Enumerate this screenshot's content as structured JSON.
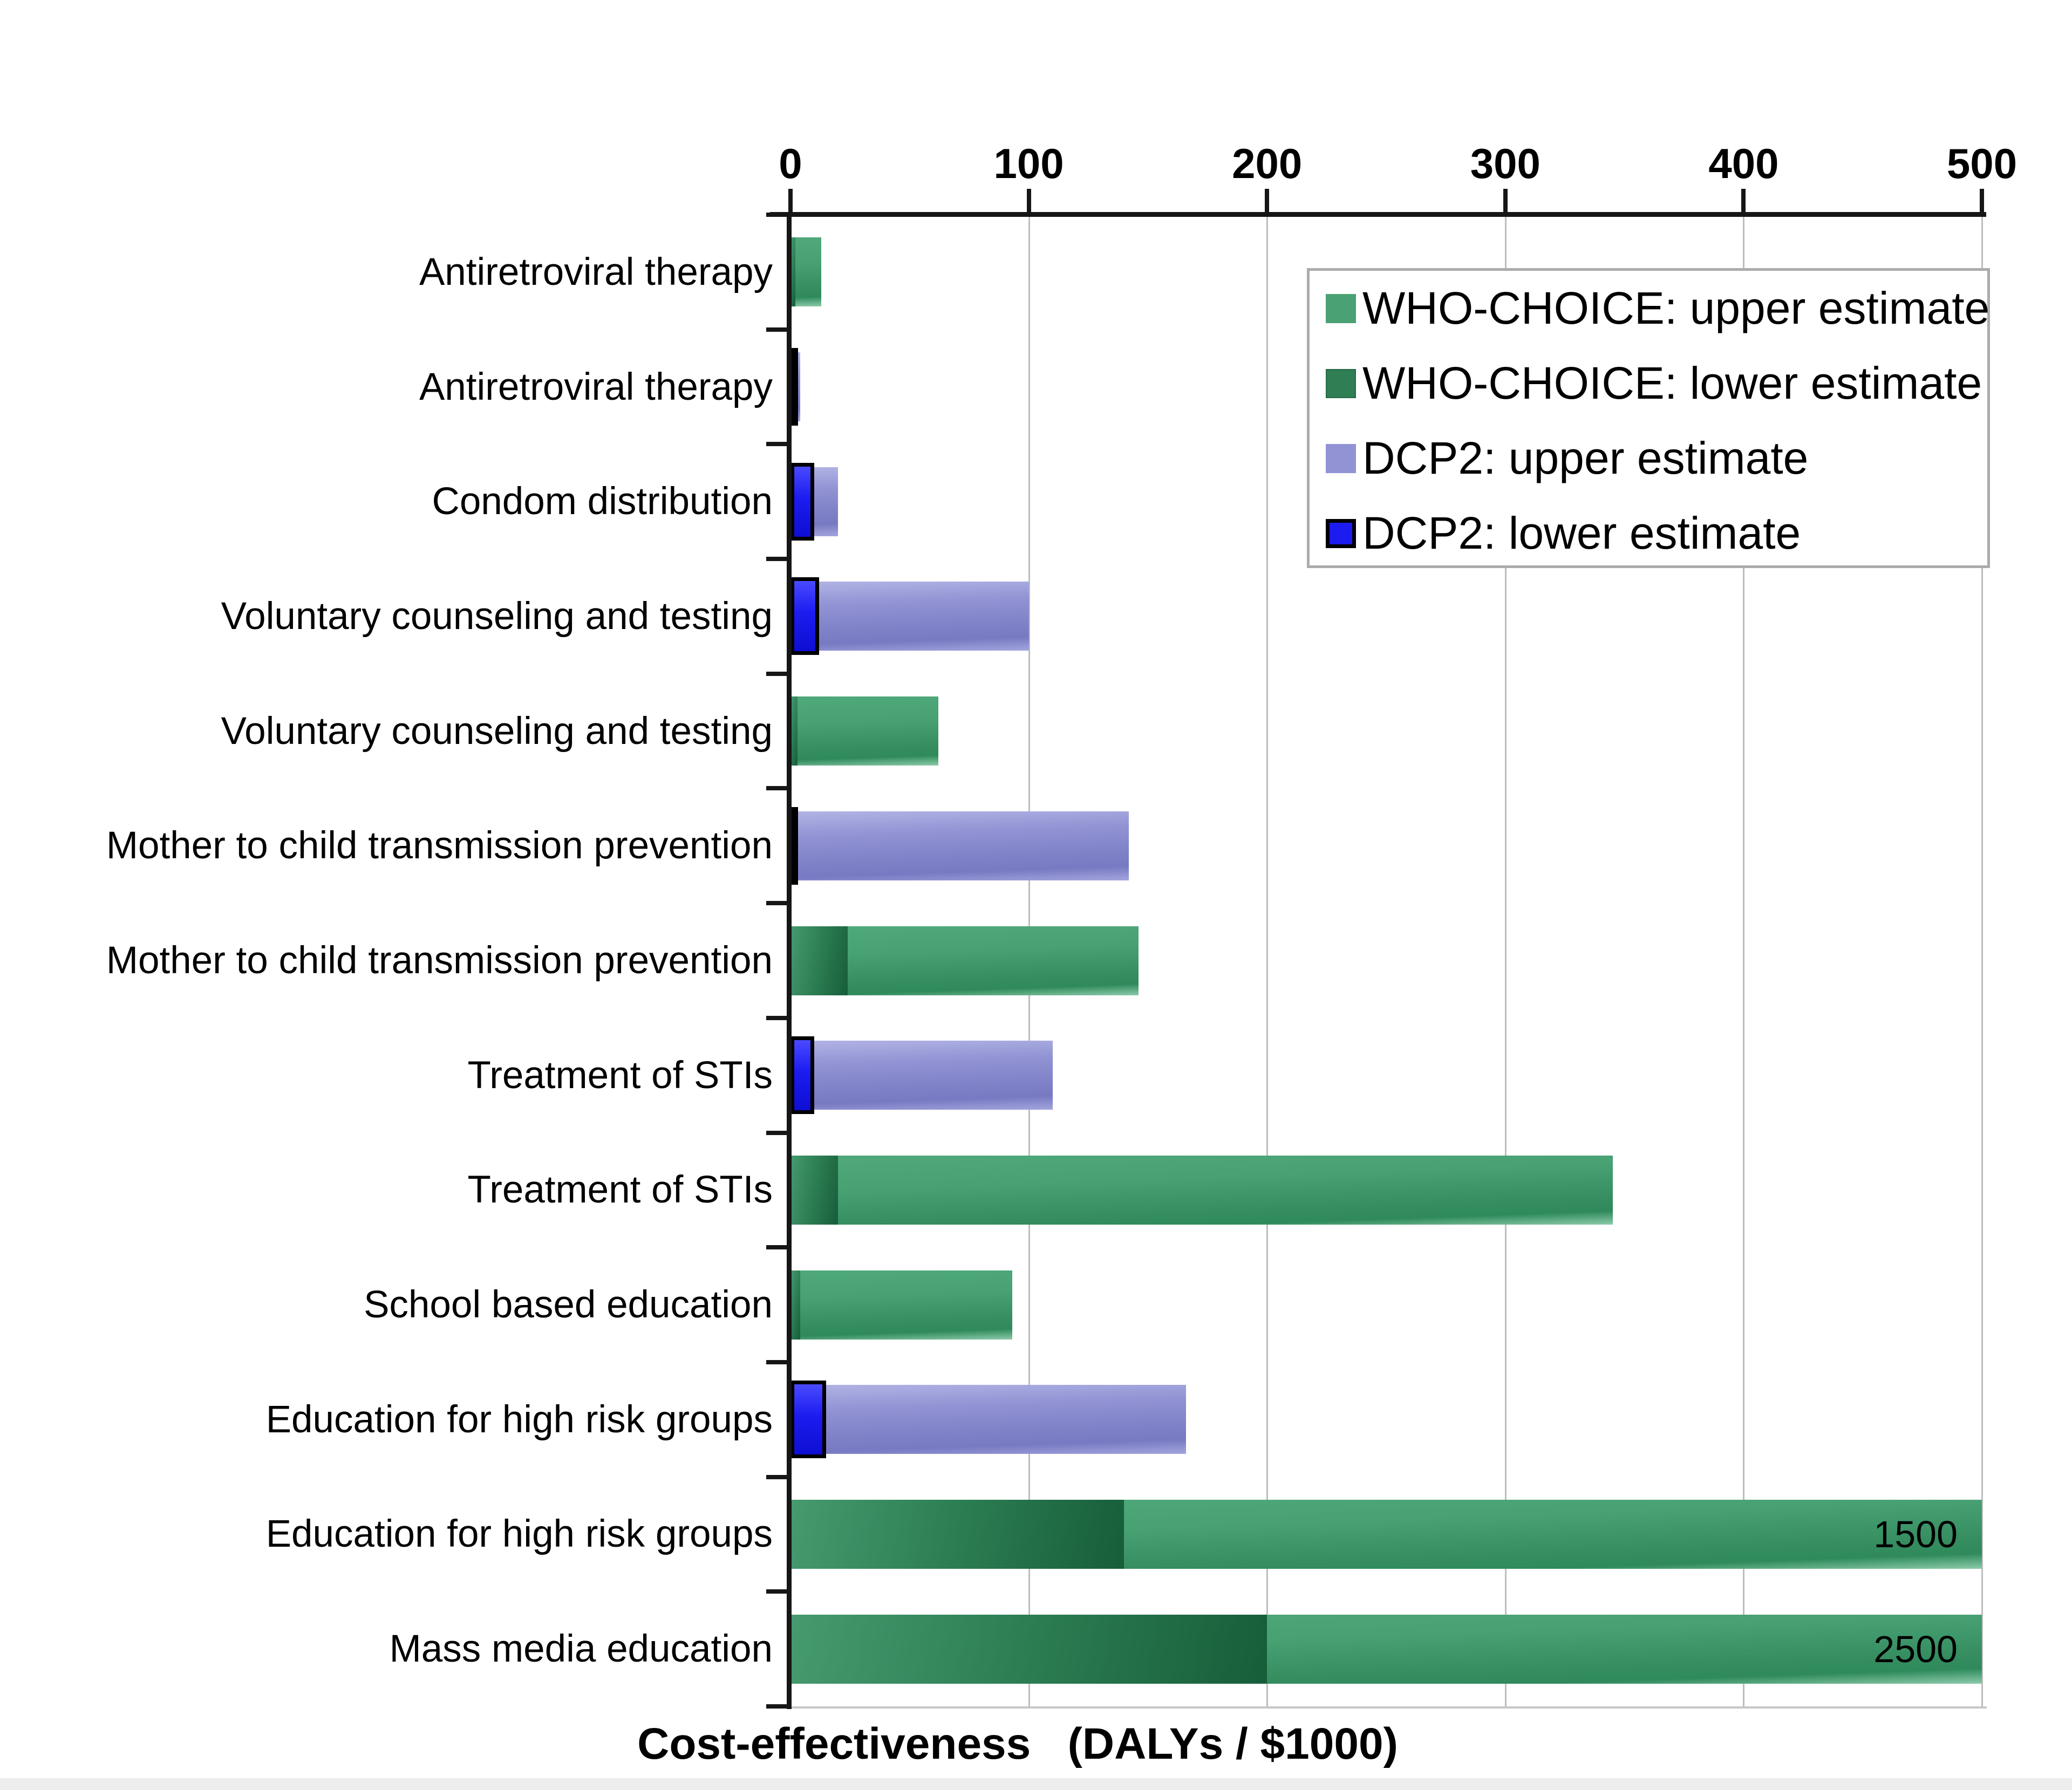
{
  "chart_data": {
    "type": "bar",
    "orientation": "horizontal",
    "title": "",
    "xlabel": "Cost-effectiveness   (DALYs / $1000)",
    "ylabel": "",
    "xlim": [
      0,
      500
    ],
    "x_ticks": [
      0,
      100,
      200,
      300,
      400,
      500
    ],
    "grid": "vertical-gridlines-on",
    "legend_position": "top-right-inside",
    "colors": {
      "who_upper": "#4aa173",
      "who_lower": "#2f7e54",
      "dcp2_upper": "#9193d4",
      "dcp2_lower": "#1c1cf0",
      "dcp2_lower_border": "#000000",
      "gridline": "#bdbdbd",
      "axis": "#161616"
    },
    "legend": [
      {
        "series": "who_upper",
        "label": "WHO-CHOICE: upper estimate"
      },
      {
        "series": "who_lower",
        "label": "WHO-CHOICE: lower estimate"
      },
      {
        "series": "dcp2_upper",
        "label": "DCP2: upper estimate"
      },
      {
        "series": "dcp2_lower",
        "label": "DCP2: lower estimate"
      }
    ],
    "rows": [
      {
        "category": "Antiretroviral therapy",
        "source": "WHO-CHOICE",
        "lower": 2,
        "upper": 13,
        "clipped": false,
        "value_label": ""
      },
      {
        "category": "Antiretroviral therapy",
        "source": "DCP2",
        "lower": 1,
        "upper": 4,
        "clipped": false,
        "value_label": ""
      },
      {
        "category": "Condom distribution",
        "source": "DCP2",
        "lower": 10,
        "upper": 20,
        "clipped": false,
        "value_label": ""
      },
      {
        "category": "Voluntary counseling and testing",
        "source": "DCP2",
        "lower": 12,
        "upper": 100,
        "clipped": false,
        "value_label": ""
      },
      {
        "category": "Voluntary counseling and testing",
        "source": "WHO-CHOICE",
        "lower": 3,
        "upper": 62,
        "clipped": false,
        "value_label": ""
      },
      {
        "category": "Mother to child transmission prevention",
        "source": "DCP2",
        "lower": 3,
        "upper": 142,
        "clipped": false,
        "value_label": ""
      },
      {
        "category": "Mother to child transmission prevention",
        "source": "WHO-CHOICE",
        "lower": 24,
        "upper": 146,
        "clipped": false,
        "value_label": ""
      },
      {
        "category": "Treatment of STIs",
        "source": "DCP2",
        "lower": 10,
        "upper": 110,
        "clipped": false,
        "value_label": ""
      },
      {
        "category": "Treatment of STIs",
        "source": "WHO-CHOICE",
        "lower": 20,
        "upper": 345,
        "clipped": false,
        "value_label": ""
      },
      {
        "category": "School based education",
        "source": "WHO-CHOICE",
        "lower": 4,
        "upper": 93,
        "clipped": false,
        "value_label": ""
      },
      {
        "category": "Education for high risk groups",
        "source": "DCP2",
        "lower": 15,
        "upper": 166,
        "clipped": false,
        "value_label": ""
      },
      {
        "category": "Education for high risk groups",
        "source": "WHO-CHOICE",
        "lower": 140,
        "upper": 1500,
        "clipped": true,
        "value_label": "1500"
      },
      {
        "category": "Mass media education",
        "source": "WHO-CHOICE",
        "lower": 200,
        "upper": 2500,
        "clipped": true,
        "value_label": "2500"
      }
    ]
  }
}
